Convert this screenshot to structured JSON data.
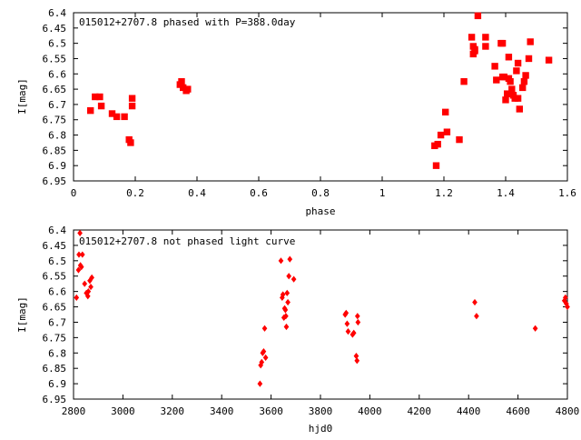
{
  "chart_data": [
    {
      "type": "scatter",
      "title": "015012+2707.8 phased with P=388.0day",
      "xlabel": "phase",
      "ylabel": "I[mag]",
      "xlim": [
        0,
        1.6
      ],
      "ylim": [
        6.95,
        6.4
      ],
      "y_inverted": true,
      "grid": false,
      "xticks": [
        "0",
        "0.2",
        "0.4",
        "0.6",
        "0.8",
        "1",
        "1.2",
        "1.4",
        "1.6"
      ],
      "yticks": [
        "6.4",
        "6.45",
        "6.5",
        "6.55",
        "6.6",
        "6.65",
        "6.7",
        "6.75",
        "6.8",
        "6.85",
        "6.9",
        "6.95"
      ],
      "marker_color": "#ff0000",
      "series": [
        {
          "points": [
            [
              0.055,
              6.72
            ],
            [
              0.07,
              6.675
            ],
            [
              0.085,
              6.675
            ],
            [
              0.09,
              6.705
            ],
            [
              0.125,
              6.73
            ],
            [
              0.14,
              6.74
            ],
            [
              0.165,
              6.74
            ],
            [
              0.18,
              6.815
            ],
            [
              0.185,
              6.825
            ],
            [
              0.19,
              6.68
            ],
            [
              0.19,
              6.705
            ],
            [
              0.345,
              6.635
            ],
            [
              0.35,
              6.625
            ],
            [
              0.355,
              6.645
            ],
            [
              0.365,
              6.655
            ],
            [
              0.37,
              6.65
            ],
            [
              1.17,
              6.835
            ],
            [
              1.175,
              6.9
            ],
            [
              1.18,
              6.83
            ],
            [
              1.19,
              6.8
            ],
            [
              1.205,
              6.725
            ],
            [
              1.21,
              6.79
            ],
            [
              1.25,
              6.815
            ],
            [
              1.265,
              6.625
            ],
            [
              1.29,
              6.48
            ],
            [
              1.295,
              6.51
            ],
            [
              1.295,
              6.535
            ],
            [
              1.3,
              6.52
            ],
            [
              1.3,
              6.525
            ],
            [
              1.31,
              6.41
            ],
            [
              1.335,
              6.48
            ],
            [
              1.335,
              6.51
            ],
            [
              1.365,
              6.575
            ],
            [
              1.37,
              6.62
            ],
            [
              1.385,
              6.5
            ],
            [
              1.39,
              6.5
            ],
            [
              1.39,
              6.61
            ],
            [
              1.395,
              6.61
            ],
            [
              1.4,
              6.685
            ],
            [
              1.405,
              6.665
            ],
            [
              1.41,
              6.545
            ],
            [
              1.41,
              6.615
            ],
            [
              1.415,
              6.625
            ],
            [
              1.42,
              6.65
            ],
            [
              1.42,
              6.665
            ],
            [
              1.425,
              6.67
            ],
            [
              1.43,
              6.68
            ],
            [
              1.435,
              6.59
            ],
            [
              1.44,
              6.68
            ],
            [
              1.44,
              6.565
            ],
            [
              1.445,
              6.715
            ],
            [
              1.455,
              6.645
            ],
            [
              1.46,
              6.625
            ],
            [
              1.465,
              6.605
            ],
            [
              1.475,
              6.55
            ],
            [
              1.48,
              6.495
            ],
            [
              1.54,
              6.555
            ]
          ]
        }
      ]
    },
    {
      "type": "scatter",
      "title": "015012+2707.8 not phased light curve",
      "xlabel": "hjd0",
      "ylabel": "I[mag]",
      "xlim": [
        2800,
        4800
      ],
      "ylim": [
        6.95,
        6.4
      ],
      "y_inverted": true,
      "grid": false,
      "xticks": [
        "2800",
        "3000",
        "3200",
        "3400",
        "3600",
        "3800",
        "4000",
        "4200",
        "4400",
        "4600",
        "4800"
      ],
      "yticks": [
        "6.4",
        "6.45",
        "6.5",
        "6.55",
        "6.6",
        "6.65",
        "6.7",
        "6.75",
        "6.8",
        "6.85",
        "6.9",
        "6.95"
      ],
      "marker_color": "#ff0000",
      "series": [
        {
          "points": [
            [
              2812,
              6.62
            ],
            [
              2820,
              6.53
            ],
            [
              2822,
              6.48
            ],
            [
              2826,
              6.41
            ],
            [
              2828,
              6.515
            ],
            [
              2832,
              6.52
            ],
            [
              2836,
              6.48
            ],
            [
              2845,
              6.575
            ],
            [
              2852,
              6.605
            ],
            [
              2858,
              6.615
            ],
            [
              2860,
              6.6
            ],
            [
              2866,
              6.565
            ],
            [
              2870,
              6.585
            ],
            [
              2874,
              6.555
            ],
            [
              3555,
              6.9
            ],
            [
              3558,
              6.84
            ],
            [
              3562,
              6.83
            ],
            [
              3566,
              6.8
            ],
            [
              3570,
              6.795
            ],
            [
              3574,
              6.72
            ],
            [
              3578,
              6.815
            ],
            [
              3640,
              6.5
            ],
            [
              3645,
              6.62
            ],
            [
              3648,
              6.61
            ],
            [
              3652,
              6.685
            ],
            [
              3655,
              6.655
            ],
            [
              3658,
              6.66
            ],
            [
              3660,
              6.68
            ],
            [
              3662,
              6.715
            ],
            [
              3665,
              6.605
            ],
            [
              3668,
              6.635
            ],
            [
              3672,
              6.55
            ],
            [
              3676,
              6.495
            ],
            [
              3692,
              6.56
            ],
            [
              3900,
              6.675
            ],
            [
              3904,
              6.67
            ],
            [
              3908,
              6.705
            ],
            [
              3912,
              6.73
            ],
            [
              3930,
              6.74
            ],
            [
              3935,
              6.735
            ],
            [
              3945,
              6.81
            ],
            [
              3948,
              6.825
            ],
            [
              3950,
              6.68
            ],
            [
              3952,
              6.7
            ],
            [
              4425,
              6.635
            ],
            [
              4432,
              6.68
            ],
            [
              4670,
              6.72
            ],
            [
              4788,
              6.63
            ],
            [
              4792,
              6.62
            ],
            [
              4796,
              6.64
            ],
            [
              4800,
              6.65
            ]
          ]
        }
      ]
    }
  ]
}
